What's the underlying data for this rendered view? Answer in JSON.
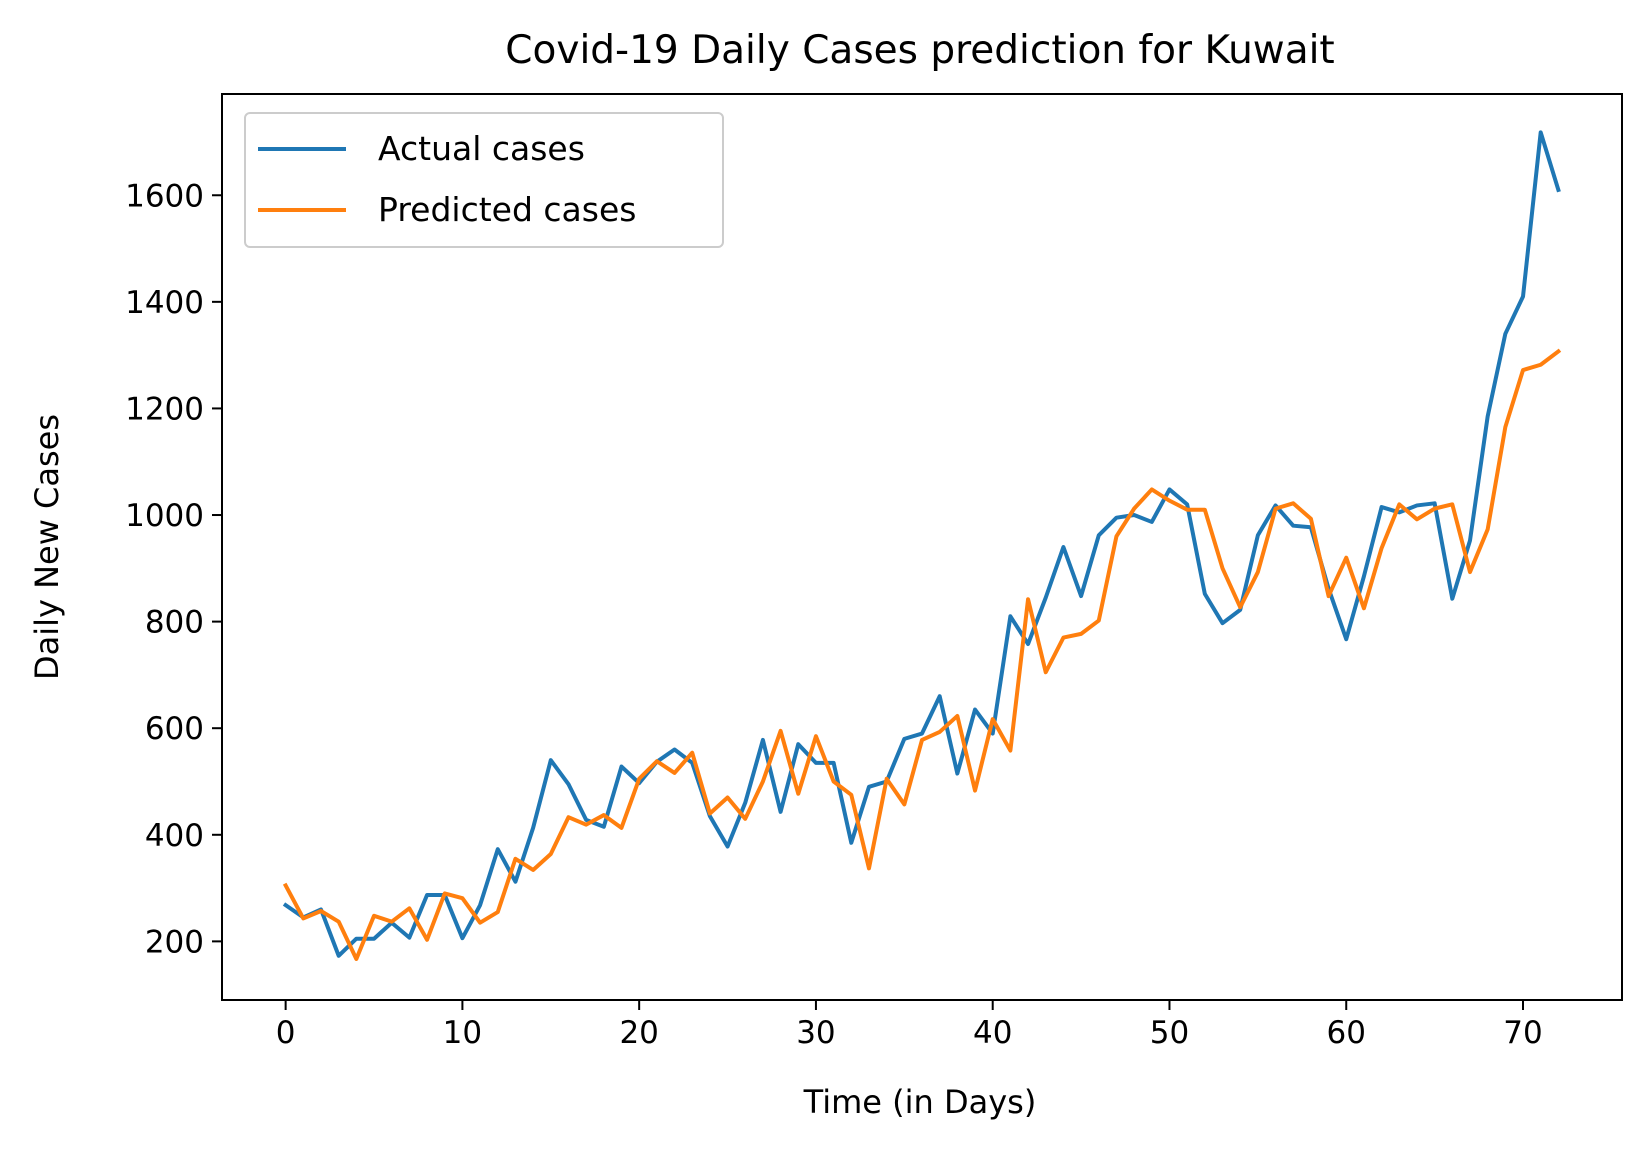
{
  "chart_data": {
    "type": "line",
    "title": "Covid-19 Daily Cases prediction for Kuwait",
    "xlabel": "Time (in Days)",
    "ylabel": "Daily New Cases",
    "xlim": [
      -3.6,
      75.6
    ],
    "ylim": [
      90,
      1790
    ],
    "xticks": [
      0,
      10,
      20,
      30,
      40,
      50,
      60,
      70
    ],
    "yticks": [
      200,
      400,
      600,
      800,
      1000,
      1200,
      1400,
      1600
    ],
    "grid": false,
    "legend_position": "upper left",
    "series": [
      {
        "name": "Actual cases",
        "color": "#1f77b4",
        "values": [
          268,
          245,
          260,
          173,
          205,
          205,
          235,
          207,
          287,
          287,
          206,
          268,
          373,
          312,
          413,
          540,
          495,
          428,
          415,
          528,
          497,
          537,
          560,
          535,
          435,
          378,
          460,
          578,
          443,
          570,
          535,
          535,
          385,
          490,
          500,
          580,
          590,
          660,
          515,
          635,
          590,
          810,
          758,
          845,
          940,
          848,
          962,
          995,
          1000,
          987,
          1048,
          1020,
          852,
          797,
          822,
          962,
          1018,
          980,
          977,
          862,
          767,
          885,
          1015,
          1005,
          1018,
          1022,
          843,
          952,
          1185,
          1340,
          1410,
          1718,
          1610
        ]
      },
      {
        "name": "Predicted cases",
        "color": "#ff7f0e",
        "values": [
          305,
          243,
          257,
          237,
          167,
          248,
          237,
          262,
          203,
          290,
          281,
          235,
          255,
          355,
          334,
          364,
          433,
          419,
          437,
          413,
          505,
          538,
          516,
          554,
          440,
          470,
          430,
          500,
          595,
          477,
          585,
          500,
          475,
          337,
          505,
          457,
          578,
          593,
          623,
          483,
          617,
          558,
          842,
          705,
          770,
          777,
          802,
          960,
          1012,
          1048,
          1027,
          1010,
          1010,
          900,
          827,
          893,
          1012,
          1022,
          993,
          848,
          920,
          825,
          938,
          1020,
          992,
          1012,
          1020,
          893,
          973,
          1165,
          1272,
          1282,
          1307
        ]
      }
    ]
  }
}
